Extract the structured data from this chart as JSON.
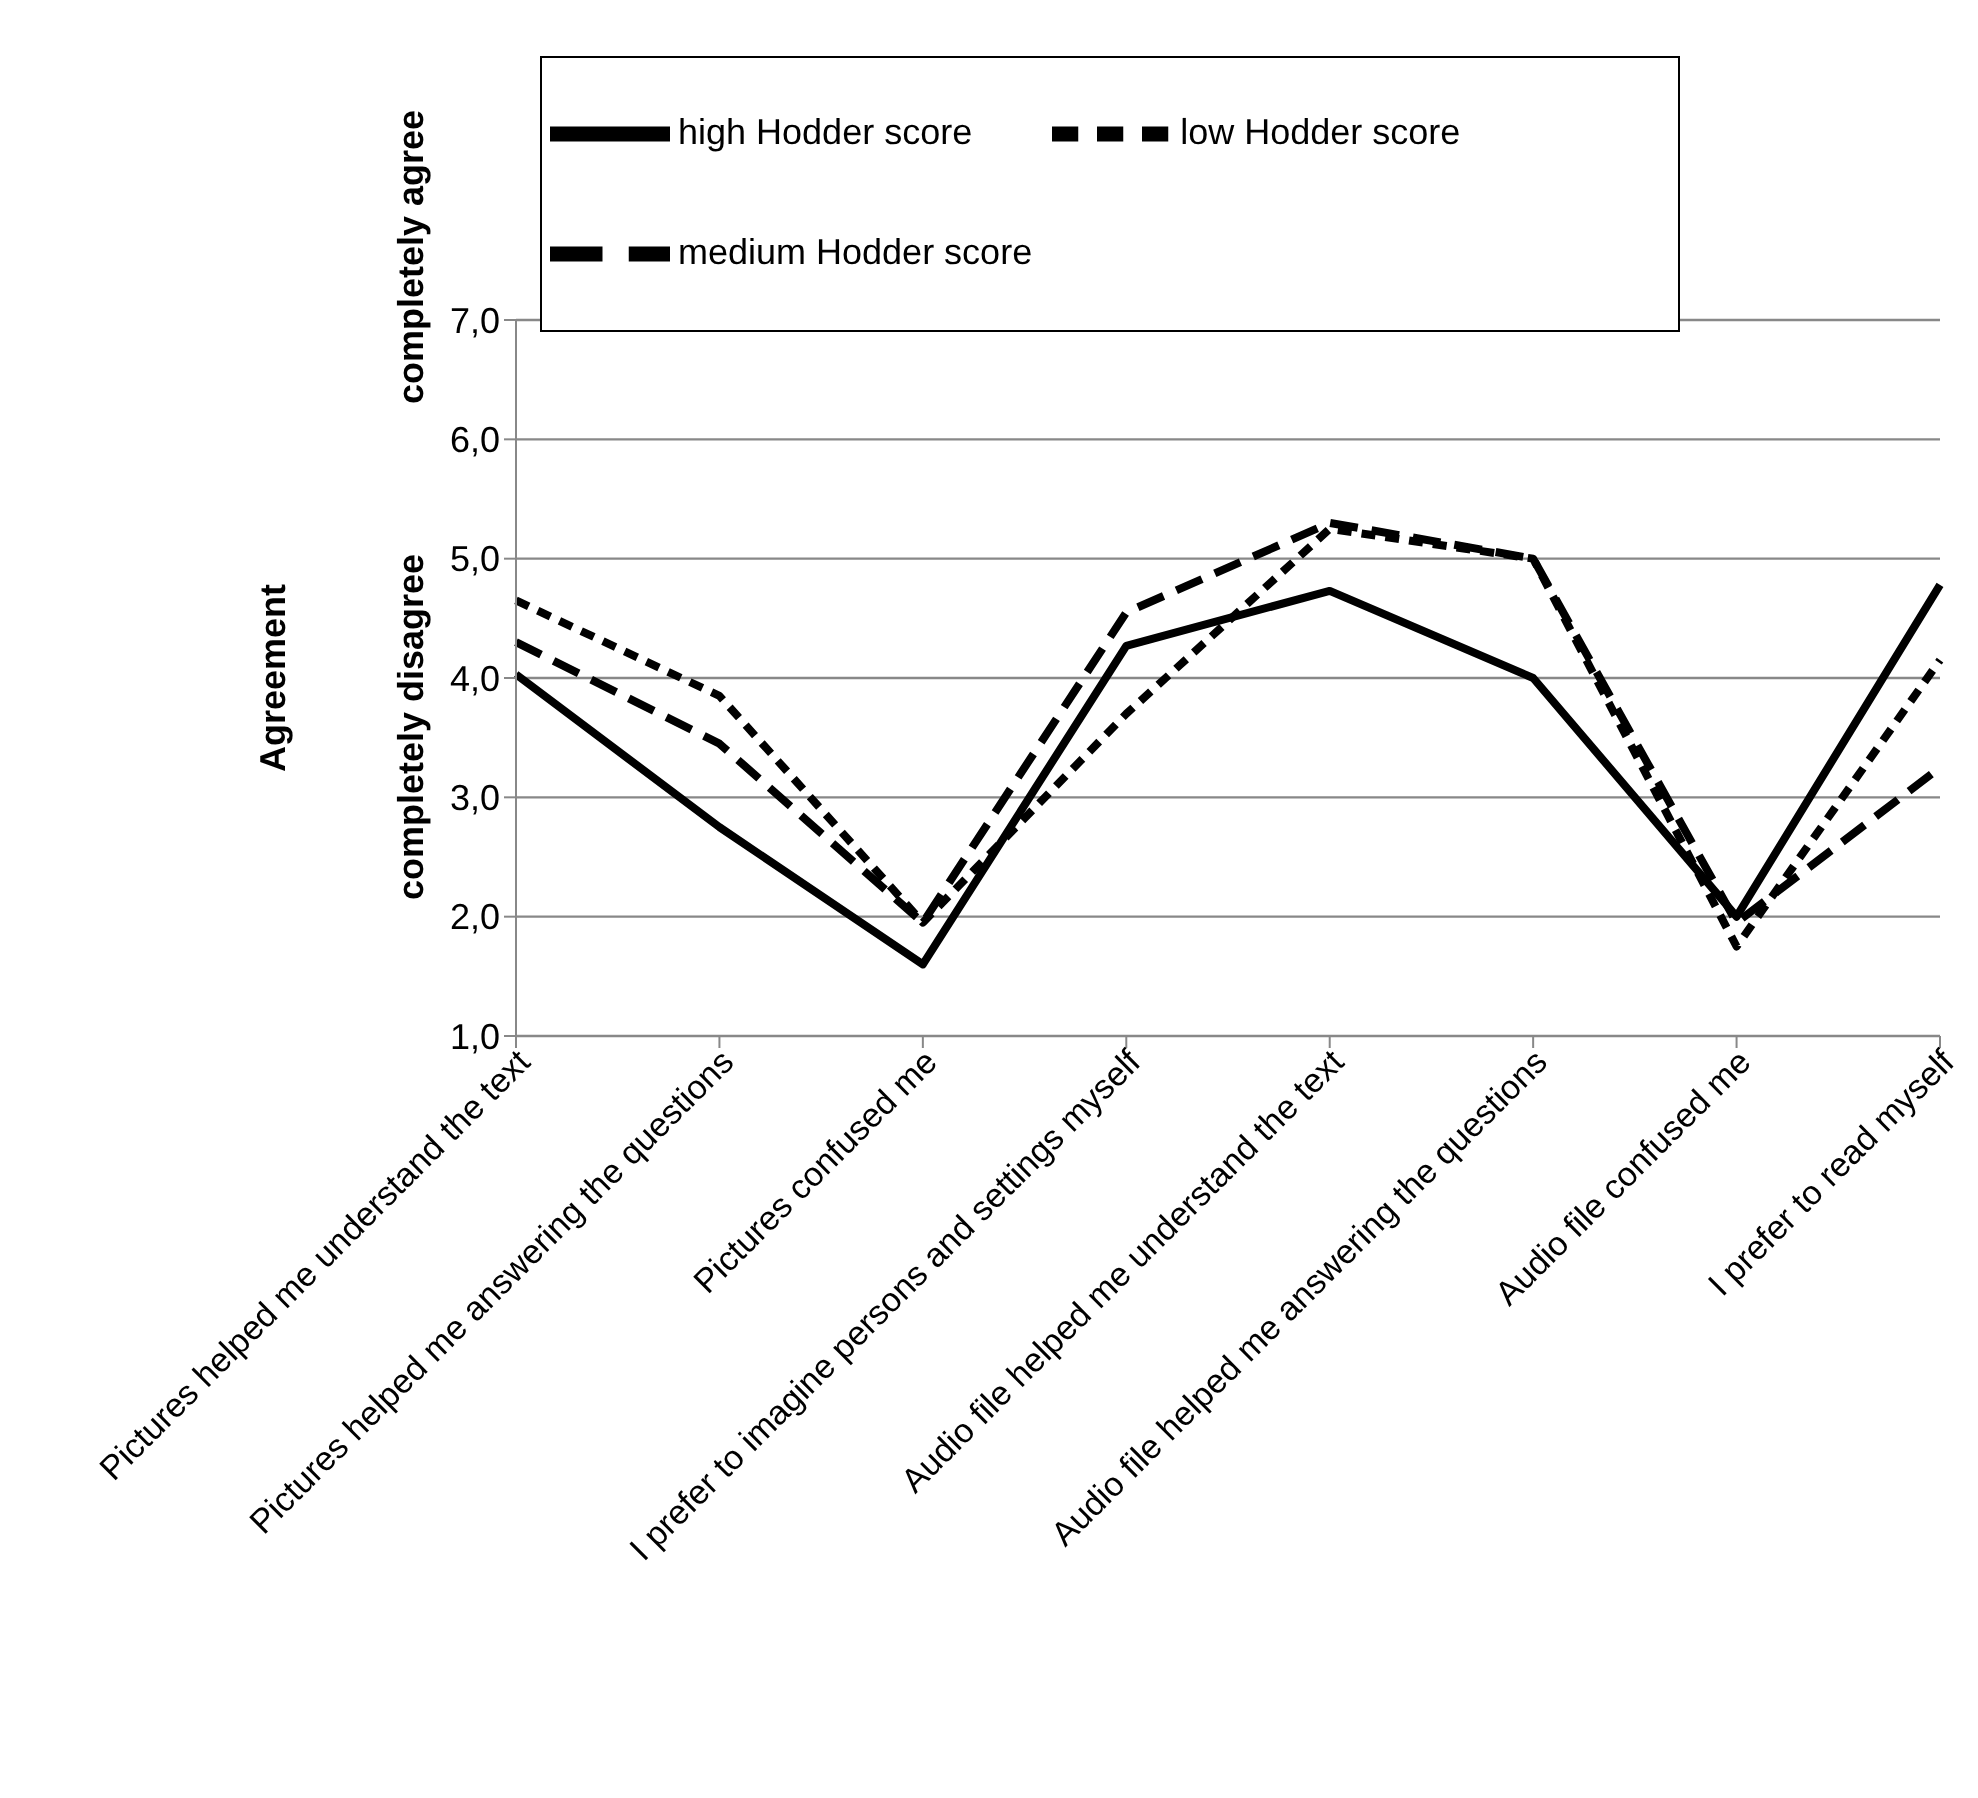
{
  "chart_data": {
    "type": "line",
    "ylabel": "Agreement",
    "annotations": [
      "completely agree",
      "completely disagree"
    ],
    "categories": [
      "Pictures helped me understand the text",
      "Pictures helped me answering the questions",
      "Pictures confused me",
      "I prefer to imagine persons and settings myself",
      "Audio file helped me understand the text",
      "Audio file helped me answering the questions",
      "Audio file confused me",
      "I prefer to read myself"
    ],
    "series": [
      {
        "name": "low Hodder score",
        "color": "#000000",
        "line_style": "dotted",
        "values": [
          4.65,
          3.85,
          1.95,
          3.7,
          5.25,
          5.0,
          1.75,
          4.15
        ]
      },
      {
        "name": "medium Hodder score",
        "color": "#000000",
        "line_style": "dashed",
        "values": [
          4.3,
          3.45,
          1.95,
          4.55,
          5.3,
          5.0,
          1.95,
          3.25
        ]
      },
      {
        "name": "high Hodder score",
        "color": "#000000",
        "line_style": "solid",
        "values": [
          4.03,
          2.75,
          1.6,
          4.27,
          4.73,
          4.0,
          2.0,
          4.78
        ]
      }
    ],
    "ylim": [
      1,
      7
    ],
    "yticks": [
      {
        "value": 1,
        "label": "1,0"
      },
      {
        "value": 2,
        "label": "2,0"
      },
      {
        "value": 3,
        "label": "3,0"
      },
      {
        "value": 4,
        "label": "4,0"
      },
      {
        "value": 5,
        "label": "5,0"
      },
      {
        "value": 6,
        "label": "6,0"
      },
      {
        "value": 7,
        "label": "7,0"
      }
    ],
    "grid": "y",
    "legend": "top",
    "marker": "none"
  }
}
